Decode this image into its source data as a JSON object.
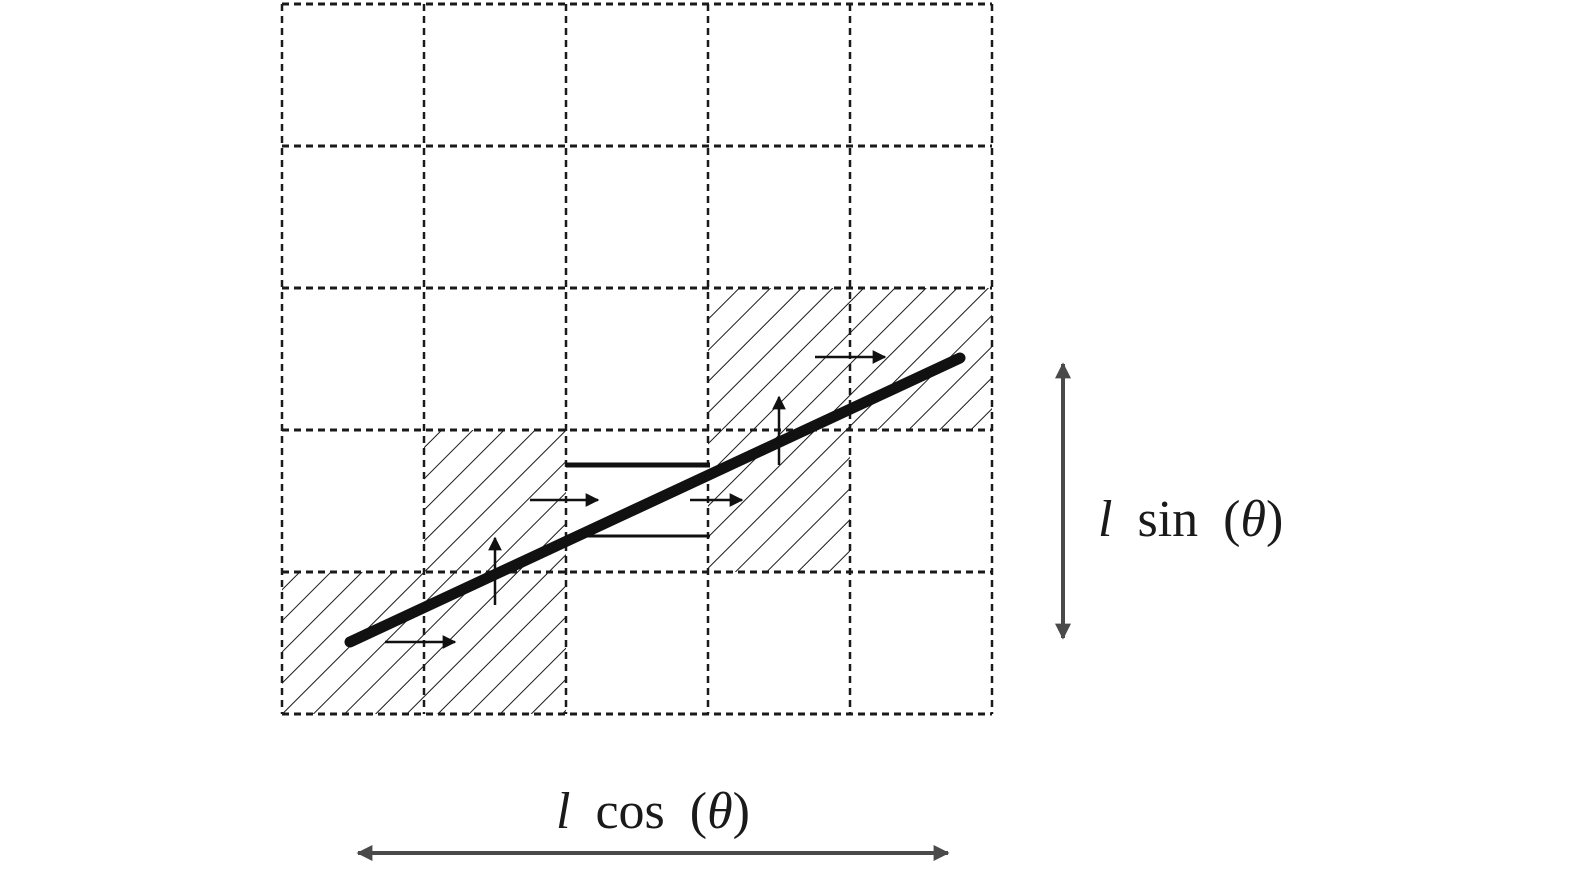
{
  "grid": {
    "rows": 5,
    "cols": 5,
    "hatched_cells": [
      {
        "row": 2,
        "col": 3
      },
      {
        "row": 2,
        "col": 4
      },
      {
        "row": 3,
        "col": 1
      },
      {
        "row": 3,
        "col": 3
      },
      {
        "row": 4,
        "col": 0
      },
      {
        "row": 4,
        "col": 1
      }
    ]
  },
  "labels": {
    "vertical": {
      "var": "l",
      "func": "sin",
      "arg_open": "(",
      "arg": "θ",
      "arg_close": ")"
    },
    "horizontal": {
      "var": "l",
      "func": "cos",
      "arg_open": "(",
      "arg": "θ",
      "arg_close": ")"
    }
  },
  "colors": {
    "ink": "#111111",
    "grid": "#1a1a1a",
    "dimension_arrow": "#4a4a4a"
  }
}
